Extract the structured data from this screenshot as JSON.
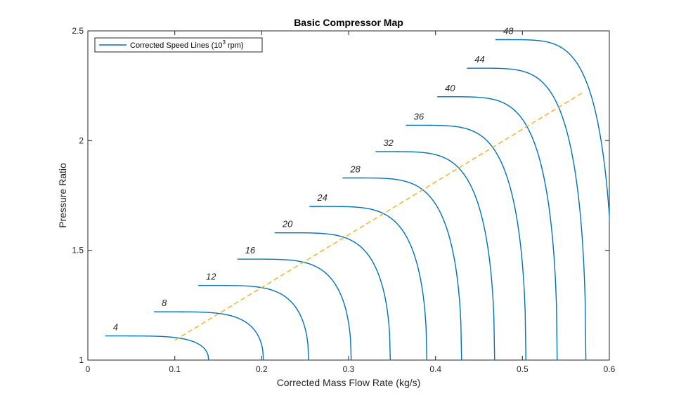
{
  "chart_data": {
    "type": "line",
    "title": "Basic Compressor Map",
    "xlabel": "Corrected Mass Flow Rate (kg/s)",
    "ylabel": "Pressure Ratio",
    "xlim": [
      0,
      0.6
    ],
    "ylim": [
      1,
      2.5
    ],
    "xticks": [
      0,
      0.1,
      0.2,
      0.3,
      0.4,
      0.5,
      0.6
    ],
    "xtick_labels": [
      "0",
      "0.1",
      "0.2",
      "0.3",
      "0.4",
      "0.5",
      "0.6"
    ],
    "yticks": [
      1,
      1.5,
      2,
      2.5
    ],
    "ytick_labels": [
      "1",
      "1.5",
      "2",
      "2.5"
    ],
    "grid": false,
    "legend": {
      "location": "top-left",
      "entries": [
        {
          "label_main": "Corrected  Speed  Lines  (10",
          "label_sup": "3",
          "label_tail": "  rpm)",
          "color": "#0072BD"
        }
      ]
    },
    "speed_lines": [
      {
        "label": "4",
        "x_start": 0.02,
        "y_start": 1.11,
        "x_end": 0.139,
        "color": "#0072BD"
      },
      {
        "label": "8",
        "x_start": 0.076,
        "y_start": 1.22,
        "x_end": 0.202,
        "color": "#0072BD"
      },
      {
        "label": "12",
        "x_start": 0.127,
        "y_start": 1.34,
        "x_end": 0.254,
        "color": "#0072BD"
      },
      {
        "label": "16",
        "x_start": 0.172,
        "y_start": 1.46,
        "x_end": 0.303,
        "color": "#0072BD"
      },
      {
        "label": "20",
        "x_start": 0.215,
        "y_start": 1.58,
        "x_end": 0.348,
        "color": "#0072BD"
      },
      {
        "label": "24",
        "x_start": 0.255,
        "y_start": 1.7,
        "x_end": 0.39,
        "color": "#0072BD"
      },
      {
        "label": "28",
        "x_start": 0.293,
        "y_start": 1.83,
        "x_end": 0.43,
        "color": "#0072BD"
      },
      {
        "label": "32",
        "x_start": 0.331,
        "y_start": 1.95,
        "x_end": 0.468,
        "color": "#0072BD"
      },
      {
        "label": "36",
        "x_start": 0.366,
        "y_start": 2.07,
        "x_end": 0.504,
        "color": "#0072BD"
      },
      {
        "label": "40",
        "x_start": 0.402,
        "y_start": 2.2,
        "x_end": 0.54,
        "color": "#0072BD"
      },
      {
        "label": "44",
        "x_start": 0.436,
        "y_start": 2.33,
        "x_end": 0.573,
        "color": "#0072BD"
      },
      {
        "label": "48",
        "x_start": 0.469,
        "y_start": 2.46,
        "x_end": 0.605,
        "color": "#0072BD"
      }
    ],
    "operating_line": {
      "x": [
        0.1,
        0.57
      ],
      "y": [
        1.09,
        2.22
      ],
      "color": "#EDB120",
      "style": "dashed"
    }
  }
}
